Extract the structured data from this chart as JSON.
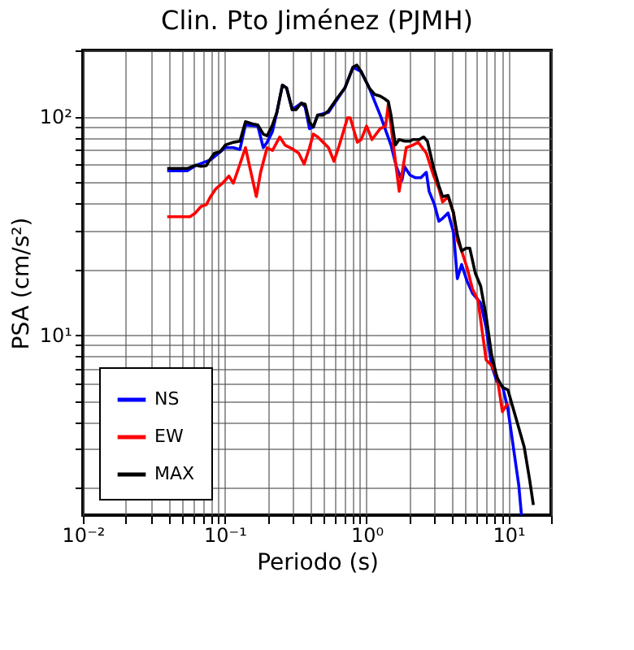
{
  "chart_data": {
    "type": "line",
    "title": "Clin. Pto Jiménez (PJMH)",
    "xlabel": "Periodo (s)",
    "ylabel": "PSA (cm/s²)",
    "log": "xy",
    "grid": true,
    "legend": "bottom left",
    "marker": "none",
    "line_style": "solid",
    "xlim": [
      0.01,
      20
    ],
    "ylim": [
      1.5,
      200
    ],
    "xticks": [
      {
        "value": 0.01,
        "label": "10⁻²"
      },
      {
        "value": 0.02,
        "label": null
      },
      {
        "value": 0.03,
        "label": null
      },
      {
        "value": 0.04,
        "label": null
      },
      {
        "value": 0.05,
        "label": null
      },
      {
        "value": 0.06,
        "label": null
      },
      {
        "value": 0.07,
        "label": null
      },
      {
        "value": 0.08,
        "label": null
      },
      {
        "value": 0.09,
        "label": null
      },
      {
        "value": 0.1,
        "label": "10⁻¹"
      },
      {
        "value": 0.2,
        "label": null
      },
      {
        "value": 0.3,
        "label": null
      },
      {
        "value": 0.4,
        "label": null
      },
      {
        "value": 0.5,
        "label": null
      },
      {
        "value": 0.6,
        "label": null
      },
      {
        "value": 0.7,
        "label": null
      },
      {
        "value": 0.8,
        "label": null
      },
      {
        "value": 0.9,
        "label": null
      },
      {
        "value": 1,
        "label": "10⁰"
      },
      {
        "value": 2,
        "label": null
      },
      {
        "value": 3,
        "label": null
      },
      {
        "value": 4,
        "label": null
      },
      {
        "value": 5,
        "label": null
      },
      {
        "value": 6,
        "label": null
      },
      {
        "value": 7,
        "label": null
      },
      {
        "value": 8,
        "label": null
      },
      {
        "value": 9,
        "label": null
      },
      {
        "value": 10,
        "label": "10¹"
      },
      {
        "value": 20,
        "label": null
      }
    ],
    "yticks": [
      {
        "value": 2,
        "label": null
      },
      {
        "value": 3,
        "label": null
      },
      {
        "value": 4,
        "label": null
      },
      {
        "value": 5,
        "label": null
      },
      {
        "value": 6,
        "label": null
      },
      {
        "value": 7,
        "label": null
      },
      {
        "value": 8,
        "label": null
      },
      {
        "value": 9,
        "label": null
      },
      {
        "value": 10,
        "label": "10¹"
      },
      {
        "value": 20,
        "label": null
      },
      {
        "value": 30,
        "label": null
      },
      {
        "value": 40,
        "label": null
      },
      {
        "value": 50,
        "label": null
      },
      {
        "value": 60,
        "label": null
      },
      {
        "value": 70,
        "label": null
      },
      {
        "value": 80,
        "label": null
      },
      {
        "value": 90,
        "label": null
      },
      {
        "value": 100,
        "label": "10²"
      },
      {
        "value": 200,
        "label": null
      }
    ],
    "series": [
      {
        "name": "NS",
        "color": "#0000ff",
        "x": [
          0.0393,
          0.0544,
          0.0621,
          0.0795,
          0.1009,
          0.115,
          0.128,
          0.14,
          0.171,
          0.187,
          0.199,
          0.217,
          0.233,
          0.255,
          0.273,
          0.299,
          0.347,
          0.369,
          0.396,
          0.421,
          0.452,
          0.539,
          0.703,
          0.802,
          0.916,
          1.045,
          1.247,
          1.487,
          1.624,
          1.775,
          1.854,
          2.026,
          2.213,
          2.416,
          2.638,
          2.759,
          3.013,
          3.234,
          3.438,
          3.758,
          4.102,
          4.364,
          4.68,
          5.114,
          5.585,
          6.378,
          6.966,
          7.61,
          8.312,
          9.079,
          9.917,
          10.83,
          11.83,
          12.36
        ],
        "values": [
          56.3,
          56.3,
          59.4,
          63.2,
          71.8,
          71.8,
          70.5,
          91.3,
          90.2,
          71.8,
          76.0,
          85.1,
          104.1,
          138.6,
          134.6,
          107.1,
          114.8,
          110.2,
          87.7,
          89.2,
          101.2,
          104.1,
          134.6,
          167.5,
          160.0,
          134.6,
          101.2,
          73.8,
          58.7,
          50.8,
          58.7,
          53.8,
          52.3,
          52.3,
          55.4,
          45.4,
          39.4,
          33.1,
          34.1,
          36.1,
          29.5,
          18.1,
          21.0,
          17.6,
          15.5,
          14.0,
          10.8,
          7.26,
          6.11,
          5.84,
          4.59,
          3.08,
          2.06,
          1.5
        ]
      },
      {
        "name": "EW",
        "color": "#ff0000",
        "x": [
          0.0393,
          0.0568,
          0.0621,
          0.0678,
          0.0741,
          0.0795,
          0.0868,
          0.0966,
          0.107,
          0.115,
          0.128,
          0.14,
          0.15,
          0.167,
          0.179,
          0.199,
          0.217,
          0.244,
          0.266,
          0.299,
          0.332,
          0.363,
          0.396,
          0.421,
          0.452,
          0.494,
          0.539,
          0.589,
          0.643,
          0.734,
          0.767,
          0.861,
          0.916,
          1.0,
          1.092,
          1.247,
          1.362,
          1.423,
          1.698,
          1.904,
          2.117,
          2.311,
          2.638,
          2.959,
          3.234,
          3.438,
          3.758,
          4.102,
          4.364,
          4.68,
          5.114,
          5.585,
          6.1,
          6.966,
          7.61,
          8.312,
          9.079,
          9.917
        ],
        "values": [
          34.7,
          34.7,
          36.1,
          38.6,
          39.4,
          42.9,
          46.7,
          49.4,
          53.3,
          49.4,
          60.4,
          71.8,
          58.7,
          42.9,
          55.4,
          71.8,
          69.7,
          80.4,
          73.8,
          71.0,
          67.8,
          60.4,
          71.8,
          82.8,
          80.4,
          76.0,
          71.8,
          62.2,
          73.8,
          98.3,
          98.3,
          76.0,
          78.2,
          90.2,
          78.2,
          87.7,
          90.2,
          113.5,
          45.4,
          71.8,
          73.8,
          76.0,
          67.8,
          53.8,
          46.7,
          40.5,
          42.9,
          36.1,
          27.1,
          24.2,
          20.3,
          16.2,
          14.4,
          7.69,
          7.26,
          6.47,
          4.46,
          4.86
        ]
      },
      {
        "name": "MAX",
        "color": "#000000",
        "x": [
          0.0393,
          0.0544,
          0.0621,
          0.0678,
          0.0741,
          0.0795,
          0.0846,
          0.0924,
          0.1009,
          0.115,
          0.128,
          0.14,
          0.157,
          0.171,
          0.187,
          0.199,
          0.217,
          0.233,
          0.255,
          0.273,
          0.299,
          0.318,
          0.347,
          0.369,
          0.396,
          0.421,
          0.452,
          0.494,
          0.539,
          0.616,
          0.703,
          0.802,
          0.853,
          0.916,
          1.045,
          1.141,
          1.247,
          1.338,
          1.423,
          1.487,
          1.596,
          1.698,
          1.854,
          2.026,
          2.117,
          2.353,
          2.525,
          2.686,
          2.959,
          3.234,
          3.438,
          3.758,
          4.102,
          4.364,
          4.68,
          5.024,
          5.343,
          5.839,
          6.378,
          6.966,
          7.61,
          8.312,
          9.079,
          9.917,
          10.83,
          11.83,
          12.92,
          14.11,
          15.0
        ],
        "values": [
          57.7,
          57.7,
          59.7,
          59.0,
          59.4,
          64.0,
          67.8,
          68.6,
          73.8,
          76.0,
          76.9,
          94.4,
          92.2,
          91.3,
          82.8,
          81.3,
          91.3,
          104.1,
          138.6,
          134.6,
          107.1,
          107.1,
          114.8,
          113.5,
          93.9,
          89.2,
          101.2,
          101.2,
          105.9,
          120.2,
          134.6,
          167.5,
          171.4,
          160.0,
          134.6,
          125.8,
          123.7,
          120.2,
          116.7,
          101.2,
          73.8,
          78.2,
          76.9,
          76.9,
          78.2,
          78.2,
          80.4,
          76.9,
          58.7,
          48.1,
          42.9,
          43.4,
          36.1,
          28.7,
          24.2,
          24.9,
          24.9,
          19.2,
          16.7,
          12.2,
          8.13,
          6.39,
          5.77,
          5.61,
          4.59,
          3.76,
          3.08,
          2.18,
          1.67
        ]
      }
    ]
  }
}
